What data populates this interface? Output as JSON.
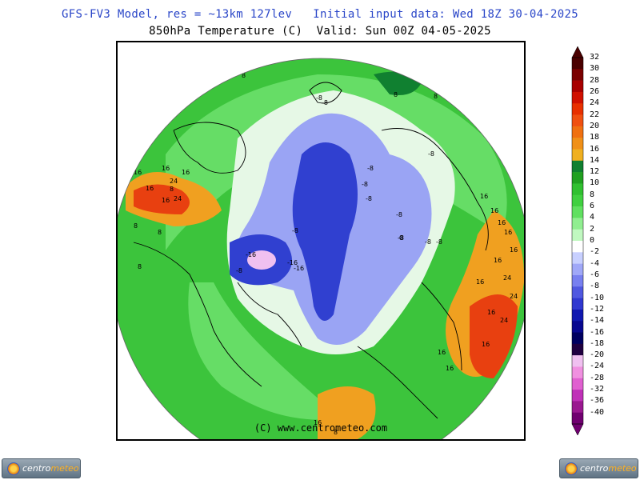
{
  "header": {
    "title_line1": "GFS-FV3 Model, res = ~13km 127lev   Initial input data: Wed 18Z 30-04-2025",
    "title_line2": "850hPa Temperature (C)  Valid: Sun 00Z 04-05-2025"
  },
  "map": {
    "copyright": "(C) www.centrometeo.com",
    "ocean_color": "#3cc43c",
    "temperature_labels": [
      "8",
      "8",
      "16",
      "8",
      "-8",
      "-8",
      "-8",
      "8",
      "16",
      "16",
      "24",
      "16",
      "24",
      "16",
      "16",
      "-8",
      "-8",
      "-8",
      "-8",
      "-8",
      "16",
      "16",
      "16",
      "16",
      "-8",
      "0",
      "-8",
      "-16",
      "-16",
      "-16",
      "-8",
      "-8",
      "16",
      "16",
      "24",
      "24",
      "16",
      "16",
      "24",
      "16",
      "8",
      "8",
      "8",
      "16",
      "16",
      "8",
      "16"
    ]
  },
  "colorbar": {
    "levels": [
      "32",
      "30",
      "28",
      "26",
      "24",
      "22",
      "20",
      "18",
      "16",
      "14",
      "12",
      "10",
      "8",
      "6",
      "4",
      "2",
      "0",
      "-2",
      "-4",
      "-6",
      "-8",
      "-10",
      "-12",
      "-14",
      "-16",
      "-18",
      "-20",
      "-24",
      "-28",
      "-32",
      "-36",
      "-40"
    ],
    "colors": [
      "#4a0000",
      "#7a0000",
      "#a80000",
      "#d01000",
      "#e83000",
      "#f05010",
      "#f07010",
      "#f09018",
      "#f0b020",
      "#108030",
      "#20a020",
      "#30c030",
      "#40d040",
      "#60e060",
      "#90ee90",
      "#c0f8c0",
      "#ffffff",
      "#c8d0ff",
      "#a0a8f8",
      "#7880f0",
      "#5058e0",
      "#3038d0",
      "#1018b0",
      "#080890",
      "#000060",
      "#200040",
      "#f0c0f0",
      "#f090e0",
      "#e060d0",
      "#c030b8",
      "#9a1890",
      "#700070"
    ]
  },
  "logos": {
    "left": {
      "text_a": "centro",
      "text_b": "meteo"
    },
    "right": {
      "text_a": "centro",
      "text_b": "meteo"
    }
  }
}
